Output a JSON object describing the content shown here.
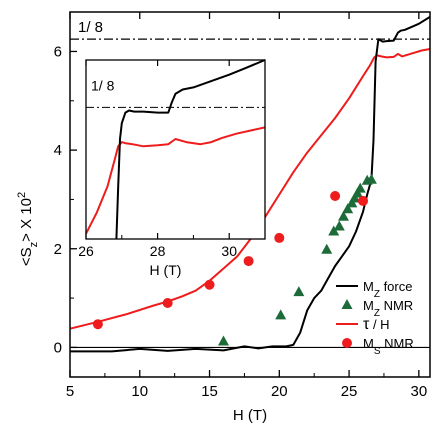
{
  "chart_data": {
    "main": {
      "type": "line",
      "xlabel": "H (T)",
      "ylabel": "<S",
      "ylabel_sub": "z",
      "ylabel_tail": "> X 10",
      "ylabel_sup": "2",
      "xlim": [
        5,
        30.8
      ],
      "ylim": [
        -0.6,
        6.8
      ],
      "xticks": [
        5,
        10,
        15,
        20,
        25,
        30
      ],
      "yticks": [
        0,
        2,
        4,
        6
      ],
      "hline_label": "1/ 8",
      "hline_value": 6.25,
      "zero_line": 0,
      "series": {
        "mz_force": {
          "color": "#000000",
          "x": [
            5,
            8,
            10,
            12,
            14,
            16,
            17.5,
            18.5,
            19.5,
            20.5,
            21,
            21.5,
            22,
            22.5,
            23,
            23.5,
            24,
            24.5,
            25,
            25.5,
            26,
            26.3,
            26.6,
            26.75,
            26.9,
            27.1,
            27.4,
            27.7,
            28.2,
            28.5,
            28.7,
            29,
            29.5,
            30,
            30.8
          ],
          "y": [
            -0.08,
            -0.08,
            -0.03,
            -0.07,
            -0.03,
            -0.06,
            0.02,
            -0.02,
            0.02,
            0.02,
            0.05,
            0.3,
            0.75,
            1.0,
            1.15,
            1.4,
            1.65,
            1.85,
            2.05,
            2.35,
            2.75,
            3.1,
            3.4,
            4.2,
            5.8,
            6.25,
            6.2,
            6.21,
            6.22,
            6.38,
            6.42,
            6.44,
            6.5,
            6.56,
            6.7
          ]
        },
        "tau_over_h": {
          "color": "#ee1c1c",
          "x": [
            5,
            7,
            9,
            11,
            12,
            13,
            14,
            15,
            16,
            17,
            18,
            19,
            20,
            21,
            22,
            23,
            24,
            25,
            26,
            26.5,
            26.8,
            27,
            27.3,
            27.7,
            28.2,
            28.5,
            28.8,
            29.5,
            30.2,
            30.8
          ],
          "y": [
            0.38,
            0.52,
            0.67,
            0.85,
            0.93,
            1.03,
            1.15,
            1.35,
            1.6,
            1.85,
            2.22,
            2.65,
            3.1,
            3.55,
            3.95,
            4.3,
            4.65,
            5.05,
            5.5,
            5.72,
            5.88,
            5.92,
            5.9,
            5.88,
            5.89,
            5.95,
            5.9,
            5.96,
            6.02,
            6.05
          ]
        },
        "mz_nmr": {
          "color": "#1e6b3a",
          "x": [
            16,
            20.1,
            21.4,
            23.4,
            23.9,
            24.3,
            24.6,
            24.9,
            25.2,
            25.4,
            25.6,
            25.8,
            26.3,
            26.6
          ],
          "y": [
            0.12,
            0.65,
            1.12,
            1.98,
            2.35,
            2.45,
            2.65,
            2.8,
            2.92,
            3.02,
            3.12,
            3.22,
            3.38,
            3.4
          ]
        },
        "ms_nmr": {
          "color": "#ee1c1c",
          "x": [
            7,
            12,
            15,
            17.8,
            20,
            24,
            26
          ],
          "y": [
            0.47,
            0.9,
            1.27,
            1.75,
            2.22,
            3.07,
            2.97
          ]
        }
      },
      "legend": {
        "position": "bottom-right",
        "items": [
          {
            "key": "mz_force",
            "marker": "line",
            "label_main": "M",
            "label_sub": "Z",
            "label_tail": " force"
          },
          {
            "key": "mz_nmr",
            "marker": "triangle",
            "label_main": "M",
            "label_sub": "Z",
            "label_tail": " NMR"
          },
          {
            "key": "tau_over_h",
            "marker": "line",
            "label_main": "τ",
            "label_sub": "",
            "label_tail": " / H"
          },
          {
            "key": "ms_nmr",
            "marker": "circle",
            "label_main": "M",
            "label_sub": "S",
            "label_tail": " NMR"
          }
        ]
      }
    },
    "inset": {
      "type": "line",
      "xlabel": "H (T)",
      "xlim": [
        26,
        31
      ],
      "ylim": [
        5.0,
        6.7
      ],
      "xticks": [
        26,
        28,
        30
      ],
      "hline_label": "1/ 8",
      "hline_value": 6.25,
      "series": {
        "mz_force": {
          "color": "#000000",
          "x": [
            26.85,
            26.9,
            26.95,
            27.0,
            27.1,
            27.2,
            27.35,
            27.6,
            28.0,
            28.3,
            28.4,
            28.5,
            28.7,
            29.0,
            29.5,
            30.0,
            30.5,
            31.0
          ],
          "y": [
            5.0,
            5.5,
            5.95,
            6.1,
            6.2,
            6.22,
            6.21,
            6.21,
            6.2,
            6.2,
            6.3,
            6.38,
            6.42,
            6.44,
            6.5,
            6.56,
            6.63,
            6.7
          ]
        },
        "tau_over_h": {
          "color": "#ee1c1c",
          "x": [
            26.0,
            26.3,
            26.6,
            26.8,
            26.9,
            27.0,
            27.1,
            27.3,
            27.6,
            28.0,
            28.3,
            28.5,
            28.8,
            29.2,
            29.5,
            29.8,
            30.2,
            30.6,
            31.0
          ],
          "y": [
            5.05,
            5.25,
            5.5,
            5.75,
            5.88,
            5.92,
            5.91,
            5.9,
            5.88,
            5.89,
            5.9,
            5.95,
            5.92,
            5.9,
            5.92,
            5.96,
            6.0,
            6.03,
            6.06
          ]
        }
      }
    }
  }
}
